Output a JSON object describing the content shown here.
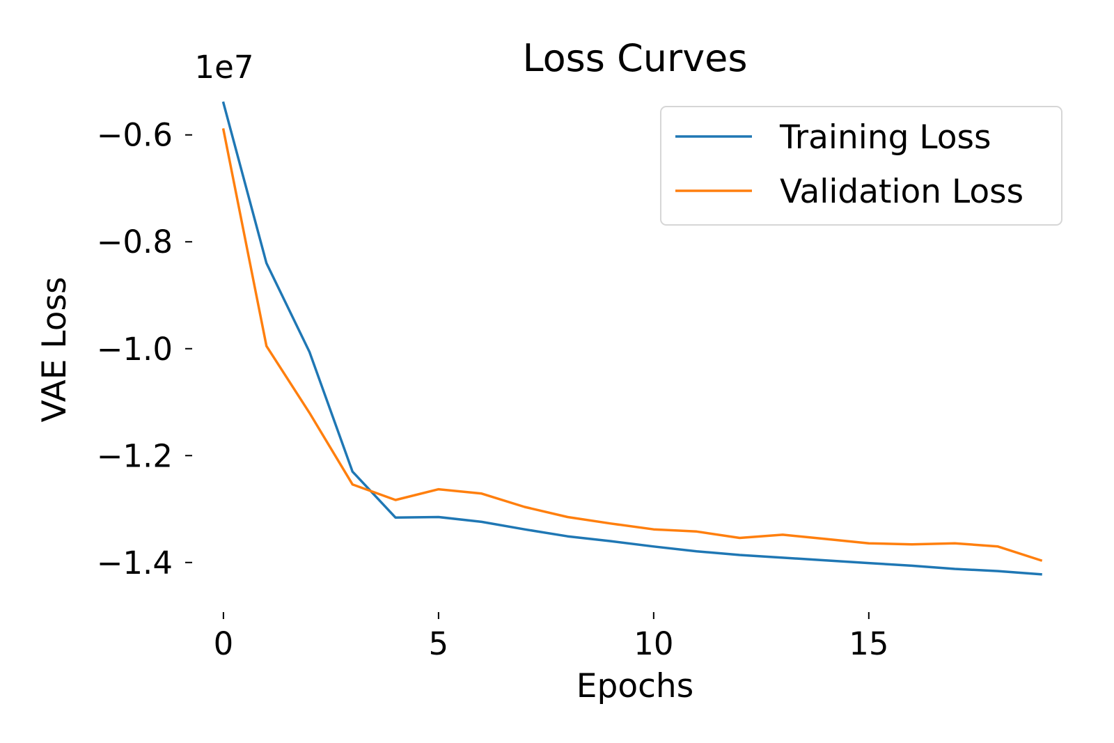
{
  "chart_data": {
    "type": "line",
    "title": "Loss Curves",
    "xlabel": "Epochs",
    "ylabel": "VAE Loss",
    "y_offset_label": "1e7",
    "xlim": [
      -0.5,
      19
    ],
    "ylim": [
      -1.455,
      -0.53
    ],
    "x_ticks": [
      0,
      5,
      10,
      15
    ],
    "x_tick_labels": [
      "0",
      "5",
      "10",
      "15"
    ],
    "y_ticks": [
      -0.6,
      -0.8,
      -1.0,
      -1.2,
      -1.4
    ],
    "y_tick_labels": [
      "−0.6",
      "−0.8",
      "−1.0",
      "−1.2",
      "−1.4"
    ],
    "grid": false,
    "legend_position": "top-right",
    "x": [
      0,
      1,
      2,
      3,
      4,
      5,
      6,
      7,
      8,
      9,
      10,
      11,
      12,
      13,
      14,
      15,
      16,
      17,
      18,
      19
    ],
    "series": [
      {
        "name": "Training Loss",
        "color": "#1f77b4",
        "values": [
          -0.54,
          -0.84,
          -1.006,
          -1.23,
          -1.316,
          -1.315,
          -1.324,
          -1.338,
          -1.351,
          -1.36,
          -1.37,
          -1.379,
          -1.386,
          -1.391,
          -1.396,
          -1.401,
          -1.406,
          -1.412,
          -1.416,
          -1.422
        ]
      },
      {
        "name": "Validation Loss",
        "color": "#ff7f0e",
        "values": [
          -0.59,
          -0.995,
          -1.12,
          -1.254,
          -1.283,
          -1.263,
          -1.271,
          -1.296,
          -1.315,
          -1.327,
          -1.338,
          -1.342,
          -1.354,
          -1.348,
          -1.356,
          -1.364,
          -1.366,
          -1.364,
          -1.37,
          -1.396
        ]
      }
    ]
  }
}
